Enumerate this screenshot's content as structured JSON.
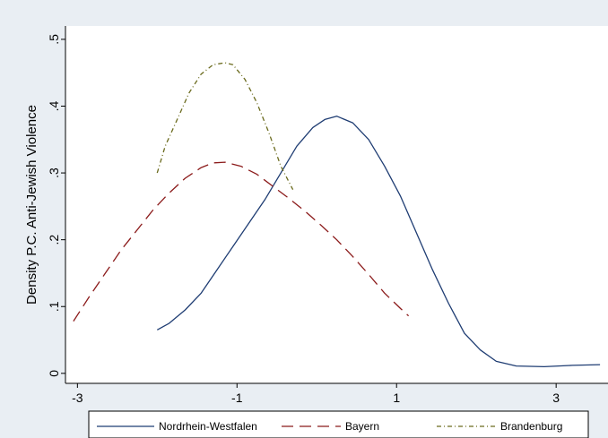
{
  "chart_data": {
    "type": "line",
    "ylabel": "Density P.C. Anti-Jewish Violence",
    "xlabel": "",
    "xlim": [
      -3.15,
      3.65
    ],
    "ylim": [
      -0.015,
      0.52
    ],
    "xticks": [
      -3,
      -1,
      1,
      3
    ],
    "xtick_labels": [
      "-3",
      "-1",
      "1",
      "3"
    ],
    "yticks": [
      0,
      0.1,
      0.2,
      0.3,
      0.4,
      0.5
    ],
    "ytick_labels": [
      "0",
      ".1",
      ".2",
      ".3",
      ".4",
      ".5"
    ],
    "grid": false,
    "legend_position": "bottom",
    "series": [
      {
        "name": "Nordrhein-Westfalen",
        "color": "#1f3d73",
        "style": "solid",
        "x": [
          -2.0,
          -1.85,
          -1.65,
          -1.45,
          -1.25,
          -1.05,
          -0.85,
          -0.65,
          -0.45,
          -0.25,
          -0.05,
          0.1,
          0.25,
          0.45,
          0.65,
          0.85,
          1.05,
          1.25,
          1.45,
          1.65,
          1.85,
          2.05,
          2.25,
          2.5,
          2.85,
          3.2,
          3.55
        ],
        "y": [
          0.065,
          0.075,
          0.095,
          0.12,
          0.155,
          0.19,
          0.225,
          0.26,
          0.3,
          0.34,
          0.368,
          0.38,
          0.385,
          0.375,
          0.35,
          0.31,
          0.265,
          0.21,
          0.155,
          0.105,
          0.06,
          0.035,
          0.018,
          0.011,
          0.01,
          0.012,
          0.013
        ]
      },
      {
        "name": "Bayern",
        "color": "#8b1a1a",
        "style": "dashed",
        "x": [
          -3.05,
          -2.85,
          -2.65,
          -2.45,
          -2.25,
          -2.05,
          -1.85,
          -1.65,
          -1.45,
          -1.3,
          -1.15,
          -0.95,
          -0.75,
          -0.55,
          -0.35,
          -0.15,
          0.05,
          0.25,
          0.45,
          0.65,
          0.85,
          1.05,
          1.15
        ],
        "y": [
          0.078,
          0.115,
          0.15,
          0.185,
          0.215,
          0.245,
          0.27,
          0.292,
          0.308,
          0.315,
          0.316,
          0.31,
          0.298,
          0.28,
          0.262,
          0.243,
          0.222,
          0.2,
          0.175,
          0.148,
          0.12,
          0.097,
          0.086
        ]
      },
      {
        "name": "Brandenburg",
        "color": "#6b6b1e",
        "style": "dashdot",
        "x": [
          -2.0,
          -1.9,
          -1.75,
          -1.6,
          -1.45,
          -1.3,
          -1.15,
          -1.05,
          -0.9,
          -0.75,
          -0.6,
          -0.45,
          -0.3
        ],
        "y": [
          0.3,
          0.34,
          0.38,
          0.42,
          0.448,
          0.462,
          0.465,
          0.462,
          0.44,
          0.405,
          0.36,
          0.31,
          0.275
        ]
      }
    ]
  }
}
